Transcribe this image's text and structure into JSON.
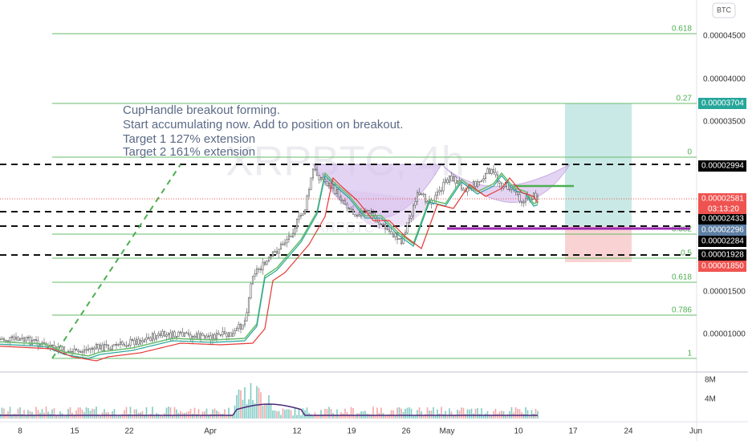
{
  "symbol_watermark": "XRPBTC, 4h",
  "symbol_sub": "XRPBTC",
  "currency_button": "BTC",
  "annotation": [
    "CupHandle breakout forming.",
    "Start accumulating now. Add to position on breakout.",
    "Target 1 127% extension",
    "Target 2 161% extension"
  ],
  "fib_labels": [
    "0.618",
    "0.27",
    "0",
    "0.382",
    "0.5",
    "0.618",
    "0.786",
    "1"
  ],
  "price_axis": [
    "0.00004500",
    "0.00004000",
    "0.00003500",
    "0.00001500",
    "0.00001000"
  ],
  "price_badges": [
    "0.00003704",
    "0.00002994",
    "0.00002581",
    "0.00002433",
    "0.00002296",
    "0.00002284",
    "0.00001928",
    "0.00001850"
  ],
  "countdown": "03:13:20",
  "volume_axis": [
    "8M",
    "4M"
  ],
  "date_axis": [
    "8",
    "15",
    "22",
    "Apr",
    "12",
    "19",
    "26",
    "May",
    "10",
    "17",
    "24",
    "Jun"
  ]
}
